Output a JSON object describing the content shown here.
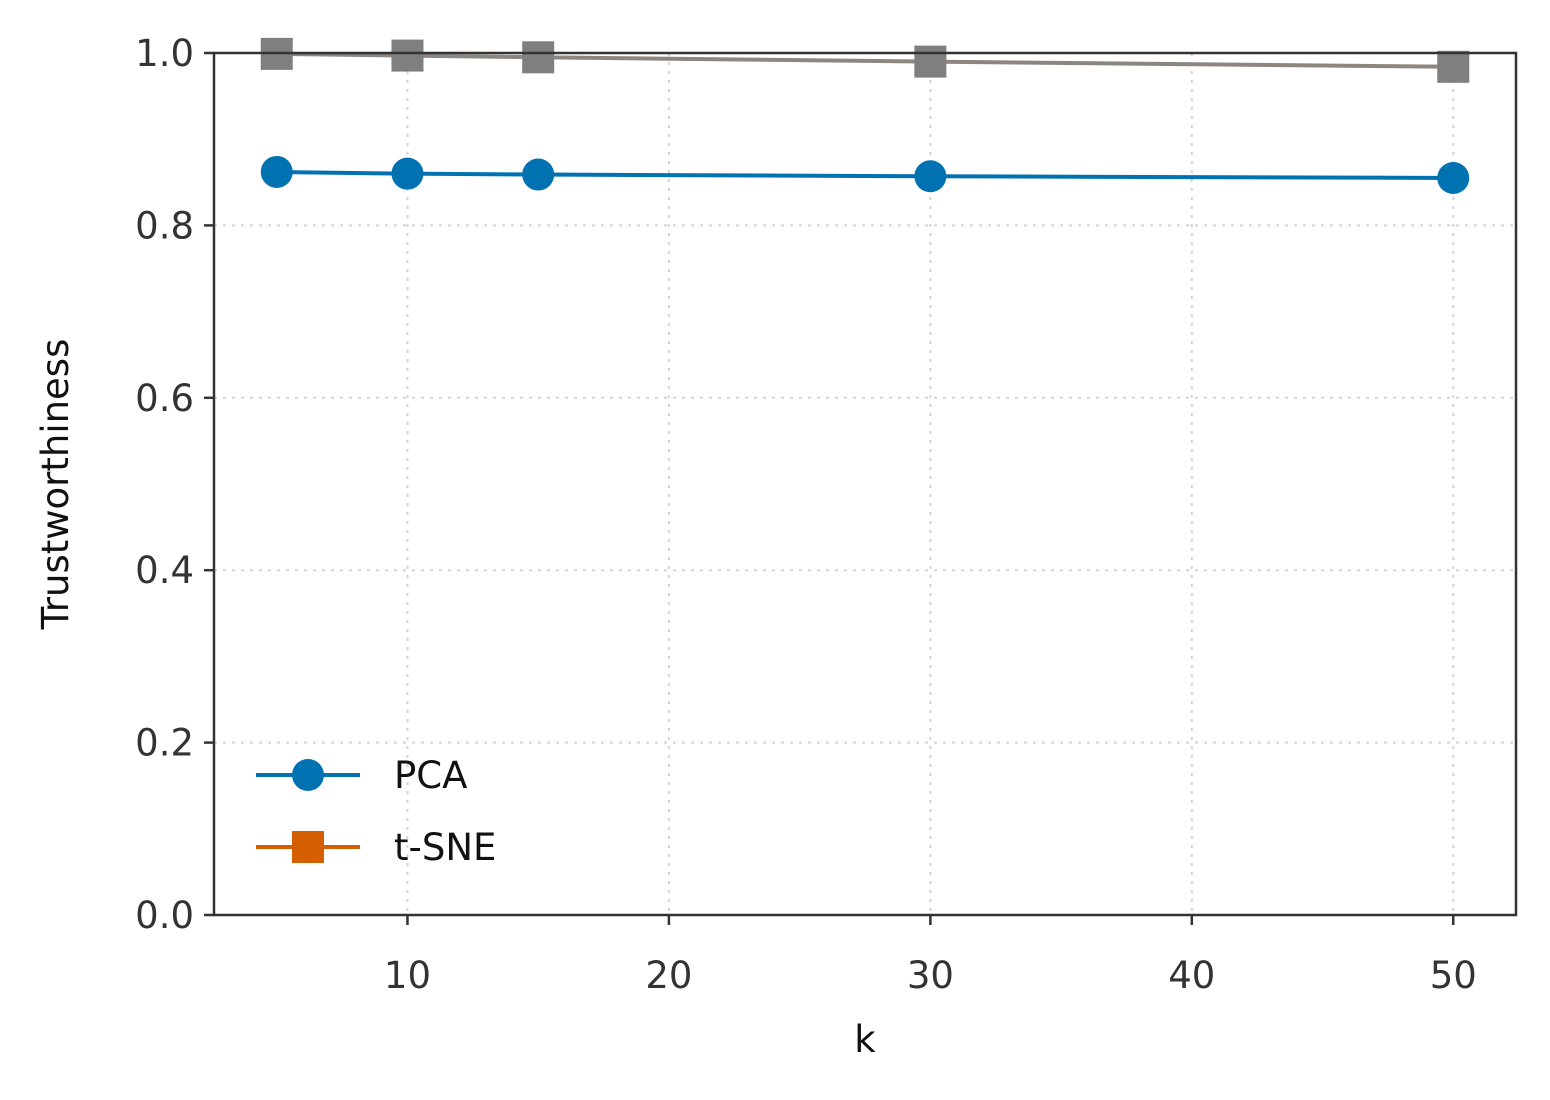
{
  "chart_data": {
    "type": "line",
    "xlabel": "k",
    "ylabel": "Trustworthiness",
    "xlim": [
      2.6,
      52.4
    ],
    "ylim": [
      0.0,
      1.0
    ],
    "xticks": [
      10,
      20,
      30,
      40,
      50
    ],
    "yticks": [
      0.0,
      0.2,
      0.4,
      0.6,
      0.8,
      1.0
    ],
    "xtick_labels": [
      "10",
      "20",
      "30",
      "40",
      "50"
    ],
    "ytick_labels": [
      "0.0",
      "0.2",
      "0.4",
      "0.6",
      "0.8",
      "1.0"
    ],
    "grid": true,
    "legend_position": "lower-left",
    "x": [
      5,
      10,
      15,
      30,
      50
    ],
    "series": [
      {
        "name": "PCA",
        "values": [
          0.862,
          0.86,
          0.859,
          0.857,
          0.855
        ],
        "color": "#0072b2",
        "marker": "circle",
        "line_color": "#0072b2",
        "marker_color": "#0072b2"
      },
      {
        "name": "t-SNE",
        "values": [
          0.999,
          0.997,
          0.995,
          0.99,
          0.984
        ],
        "color": "#d55e00",
        "marker": "square",
        "line_color": "#8c8580",
        "marker_color": "#7f7f7f"
      }
    ]
  }
}
